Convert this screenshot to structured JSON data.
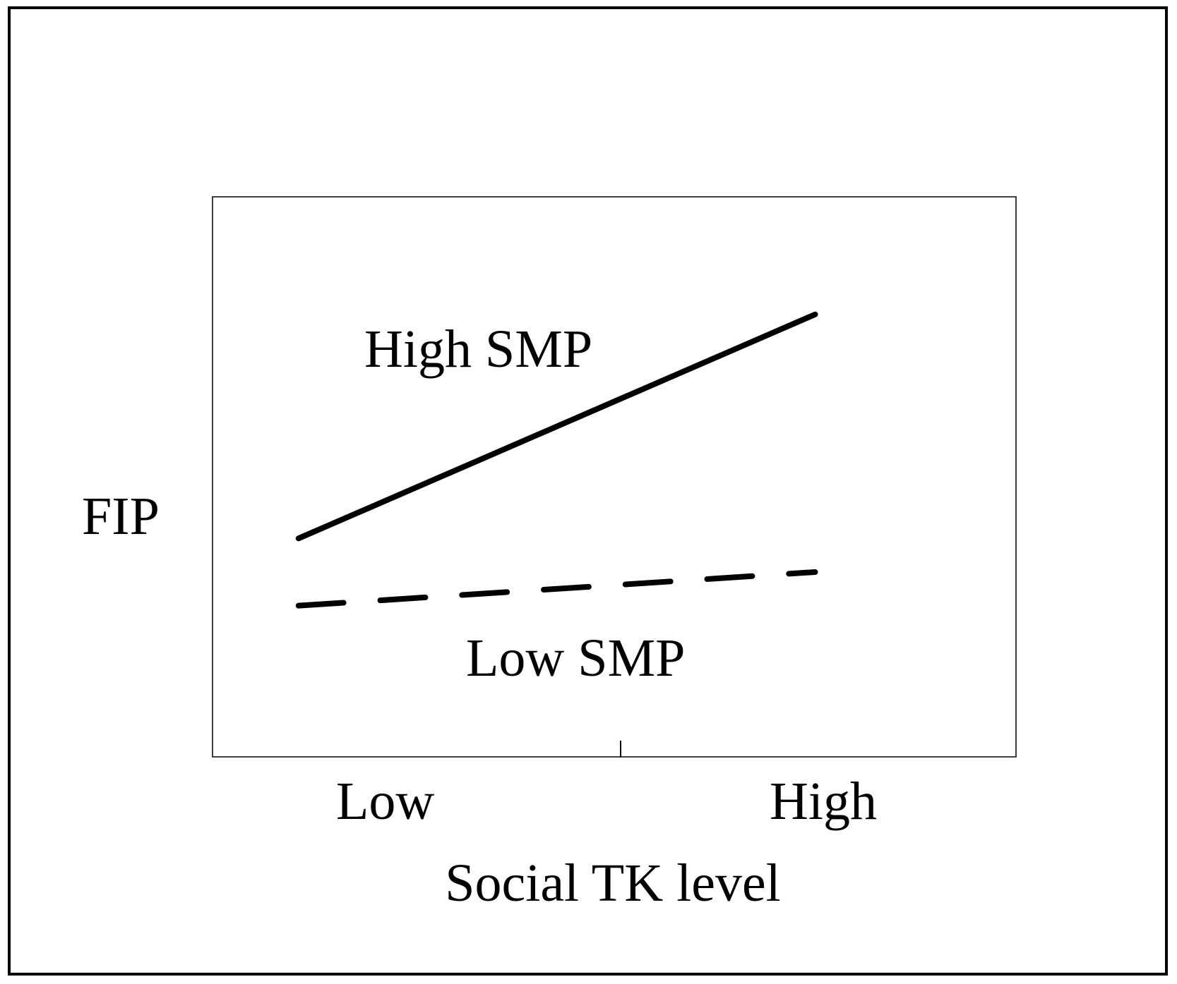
{
  "chart_data": {
    "type": "line",
    "x_label": "Social TK level",
    "y_label": "FIP",
    "categories": [
      "Low",
      "High"
    ],
    "ylim": [
      0,
      100
    ],
    "series": [
      {
        "name": "High SMP",
        "color": "#000000",
        "style": "solid",
        "values": [
          39,
          79
        ]
      },
      {
        "name": "Low SMP",
        "color": "#000000",
        "style": "dashed",
        "values": [
          27,
          33
        ]
      }
    ]
  }
}
